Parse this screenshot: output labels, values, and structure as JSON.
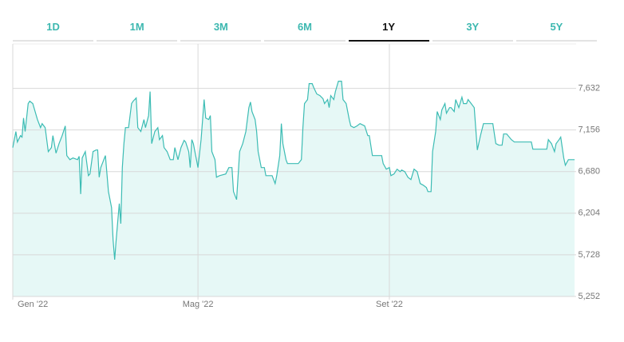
{
  "tabs": [
    "1D",
    "1M",
    "3M",
    "6M",
    "1Y",
    "3Y",
    "5Y"
  ],
  "active_tab": 4,
  "chart_data": {
    "type": "line",
    "color": "#3cbcb4",
    "fill": "#e6f8f6",
    "x": [
      0,
      2,
      3,
      5,
      6,
      7,
      8,
      10,
      11,
      13,
      16,
      18,
      19,
      21,
      23,
      25,
      26,
      28,
      30,
      32,
      34,
      35,
      37,
      39,
      42,
      43,
      44,
      45,
      47,
      49,
      50,
      52,
      54,
      55,
      56,
      57,
      59,
      60,
      62,
      64,
      65,
      66,
      67,
      69,
      70,
      71,
      72,
      73,
      75,
      77,
      78,
      80,
      81,
      83,
      85,
      86,
      88,
      89,
      90,
      92,
      94,
      95,
      97,
      98,
      100,
      102,
      104,
      105,
      107,
      109,
      111,
      112,
      114,
      115,
      116,
      117,
      119,
      120,
      122,
      124,
      125,
      127,
      128,
      129,
      131,
      132,
      134,
      138,
      140,
      142,
      143,
      145,
      146,
      147,
      149,
      151,
      153,
      154,
      155,
      157,
      158,
      159,
      161,
      163,
      164,
      166,
      168,
      170,
      171,
      173,
      174,
      175,
      177,
      178,
      180,
      183,
      185,
      187,
      188,
      189,
      191,
      192,
      194,
      195,
      197,
      199,
      201,
      202,
      204,
      205,
      206,
      208,
      209,
      211,
      213,
      214,
      216,
      218,
      219,
      221,
      223,
      225,
      228,
      230,
      231,
      233,
      235,
      237,
      239,
      240,
      242,
      244,
      245,
      247,
      249,
      251,
      252,
      254,
      256,
      258,
      260,
      262,
      264,
      266,
      268,
      269,
      271,
      272,
      274,
      275,
      277,
      278,
      280,
      281,
      283,
      284,
      286,
      287,
      289,
      291,
      292,
      294,
      295,
      297,
      299,
      301,
      303,
      305,
      307,
      309,
      311,
      313,
      315,
      317,
      318,
      320,
      323,
      325,
      328,
      330,
      333,
      336,
      337,
      339,
      341,
      343,
      346,
      347,
      349,
      351,
      352,
      354,
      355,
      357,
      358,
      360,
      362,
      364
    ],
    "values": [
      6955,
      7138,
      7019,
      7092,
      7074,
      7293,
      7138,
      7458,
      7486,
      7458,
      7275,
      7183,
      7229,
      7183,
      6909,
      6955,
      7092,
      6891,
      7000,
      7092,
      7202,
      6863,
      6817,
      6836,
      6817,
      6854,
      6424,
      6836,
      6909,
      6634,
      6653,
      6909,
      6927,
      6927,
      6616,
      6726,
      6817,
      6863,
      6451,
      6268,
      5902,
      5673,
      5902,
      6314,
      6085,
      6726,
      7000,
      7183,
      7183,
      7458,
      7486,
      7522,
      7183,
      7138,
      7275,
      7183,
      7321,
      7595,
      7000,
      7138,
      7183,
      7046,
      7092,
      6955,
      6909,
      6817,
      6817,
      6955,
      6817,
      6955,
      7037,
      7019,
      6909,
      6726,
      7046,
      7000,
      6817,
      6726,
      7046,
      7504,
      7293,
      7275,
      7321,
      6909,
      6817,
      6616,
      6634,
      6653,
      6726,
      6726,
      6451,
      6360,
      6634,
      6909,
      7000,
      7138,
      7412,
      7476,
      7367,
      7275,
      7138,
      6909,
      6726,
      6726,
      6634,
      6634,
      6634,
      6543,
      6634,
      6863,
      7229,
      7000,
      6817,
      6772,
      6772,
      6772,
      6772,
      6817,
      7183,
      7458,
      7504,
      7687,
      7687,
      7641,
      7568,
      7550,
      7513,
      7458,
      7504,
      7412,
      7550,
      7504,
      7595,
      7714,
      7714,
      7504,
      7458,
      7275,
      7202,
      7183,
      7202,
      7229,
      7202,
      7092,
      7092,
      6863,
      6863,
      6863,
      6863,
      6772,
      6708,
      6726,
      6634,
      6653,
      6708,
      6680,
      6698,
      6680,
      6616,
      6589,
      6708,
      6680,
      6543,
      6524,
      6497,
      6451,
      6451,
      6909,
      7138,
      7367,
      7275,
      7385,
      7458,
      7348,
      7412,
      7412,
      7367,
      7504,
      7412,
      7531,
      7458,
      7458,
      7504,
      7458,
      7412,
      6927,
      7092,
      7229,
      7229,
      7229,
      7229,
      7000,
      6982,
      6982,
      7110,
      7110,
      7046,
      7019,
      7019,
      7019,
      7019,
      7019,
      6936,
      6936,
      6936,
      6936,
      6936,
      7046,
      7000,
      6909,
      7000,
      7046,
      7074,
      6836,
      6753,
      6817,
      6817,
      6817
    ],
    "xlim": [
      0,
      365
    ],
    "xticks": [
      {
        "value": 0,
        "label": "Gen '22"
      },
      {
        "value": 120,
        "label": "Mag '22"
      },
      {
        "value": 244,
        "label": "Set '22"
      }
    ],
    "ylim": [
      5252,
      8140
    ],
    "yticks": [
      {
        "value": 5252,
        "label": "5,252"
      },
      {
        "value": 5728,
        "label": "5,728"
      },
      {
        "value": 6204,
        "label": "6,204"
      },
      {
        "value": 6680,
        "label": "6,680"
      },
      {
        "value": 7156,
        "label": "7,156"
      },
      {
        "value": 7632,
        "label": "7,632"
      }
    ],
    "grid": true
  }
}
